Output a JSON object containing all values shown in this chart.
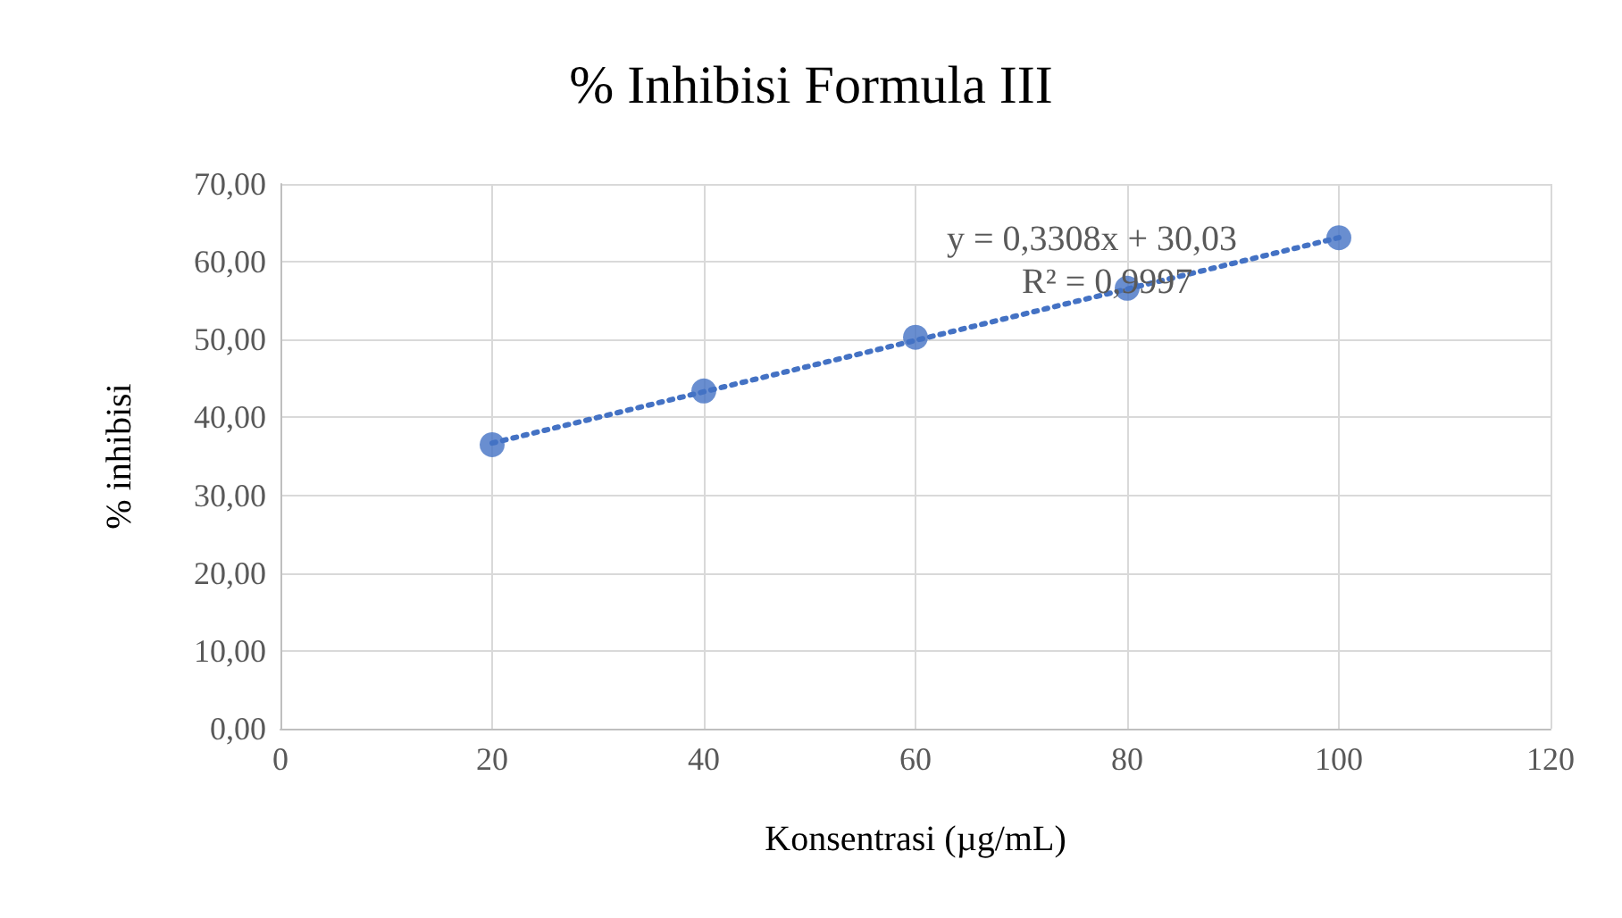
{
  "chart_data": {
    "type": "scatter",
    "title": "% Inhibisi Formula III",
    "xlabel": "Konsentrasi (µg/mL)",
    "ylabel": "% inhibisi",
    "x": [
      20,
      40,
      60,
      80,
      100
    ],
    "series": [
      {
        "color": "#4472c4",
        "values": [
          36.5,
          43.4,
          50.3,
          56.6,
          63.1
        ],
        "marker": "circle"
      },
      {
        "type": "line",
        "color": "#4472c4",
        "x": [
          20,
          100
        ],
        "values": [
          36.7,
          63.1
        ],
        "line_style": "dotted",
        "marker": "none"
      }
    ],
    "annotations": [
      "y = 0,3308x + 30,03",
      "R² = 0,9997"
    ],
    "xlim": [
      0,
      120
    ],
    "xticks": [
      0,
      20,
      40,
      60,
      80,
      100,
      120
    ],
    "ylim": [
      0,
      70
    ],
    "yticks": [
      {
        "value": 0,
        "label": "0,00"
      },
      {
        "value": 10,
        "label": "10,00"
      },
      {
        "value": 20,
        "label": "20,00"
      },
      {
        "value": 30,
        "label": "30,00"
      },
      {
        "value": 40,
        "label": "40,00"
      },
      {
        "value": 50,
        "label": "50,00"
      },
      {
        "value": 60,
        "label": "60,00"
      },
      {
        "value": 70,
        "label": "70,00"
      }
    ],
    "grid": true
  }
}
